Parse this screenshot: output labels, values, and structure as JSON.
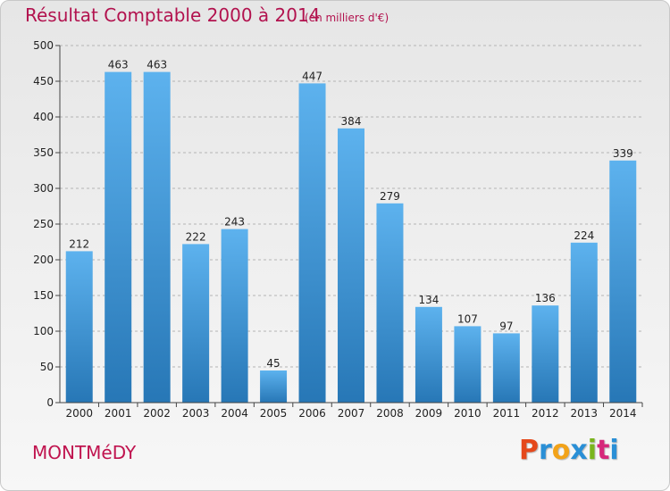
{
  "header": {
    "title": "Résultat Comptable 2000 à 2014",
    "subtitle": "(en milliers d'€)"
  },
  "footer": {
    "town": "MONTMéDY",
    "logo_letters": [
      "P",
      "r",
      "o",
      "x",
      "i",
      "t",
      "i"
    ],
    "logo_colors": [
      "#e5481b",
      "#2a8fd6",
      "#f2a31a",
      "#2a8fd6",
      "#7ab51d",
      "#d6287a",
      "#2a8fd6"
    ]
  },
  "colors": {
    "bar_top": "#5db2ee",
    "bar_bottom": "#2777b6",
    "grid": "#b4b4b4",
    "axis": "#444444"
  },
  "chart_data": {
    "type": "bar",
    "categories": [
      "2000",
      "2001",
      "2002",
      "2003",
      "2004",
      "2005",
      "2006",
      "2007",
      "2008",
      "2009",
      "2010",
      "2011",
      "2012",
      "2013",
      "2014"
    ],
    "values": [
      212,
      463,
      463,
      222,
      243,
      45,
      447,
      384,
      279,
      134,
      107,
      97,
      136,
      224,
      339
    ],
    "ylim": [
      0,
      500
    ],
    "yticks": [
      0,
      50,
      100,
      150,
      200,
      250,
      300,
      350,
      400,
      450,
      500
    ],
    "grid": true,
    "legend": "none"
  }
}
